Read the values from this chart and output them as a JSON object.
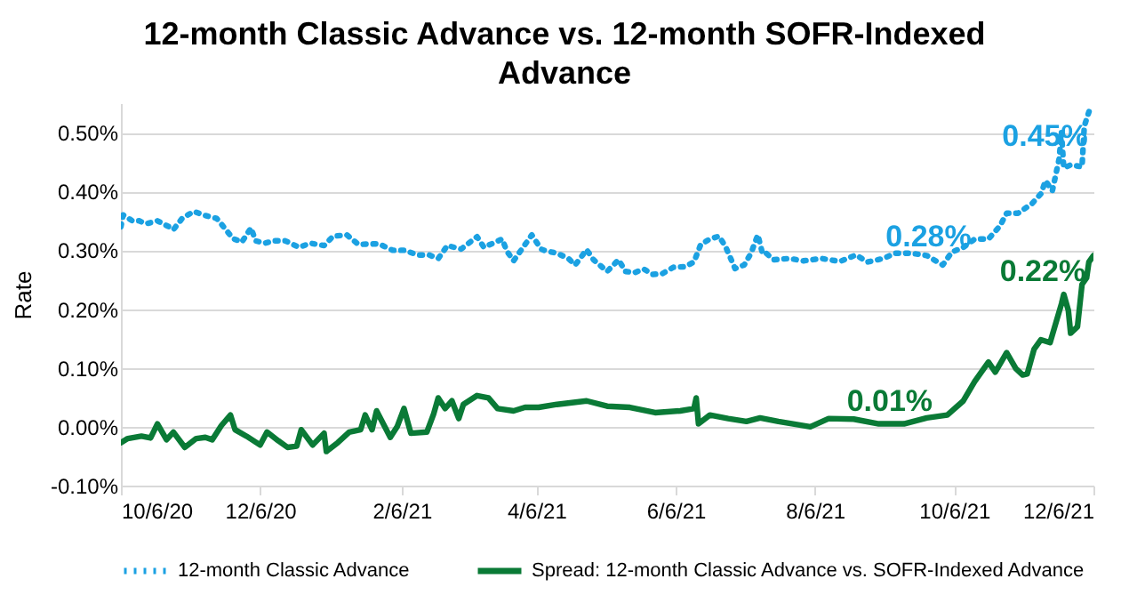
{
  "chart_data": {
    "type": "line",
    "title": "12-month Classic Advance vs. 12-month SOFR-Indexed Advance",
    "ylabel": "Rate",
    "xlim": [
      "2020-10-06",
      "2021-12-06"
    ],
    "xticks": [
      {
        "value": "2020-10-06",
        "label": "10/6/20"
      },
      {
        "value": "2020-12-06",
        "label": "12/6/20"
      },
      {
        "value": "2021-02-06",
        "label": "2/6/21"
      },
      {
        "value": "2021-04-06",
        "label": "4/6/21"
      },
      {
        "value": "2021-06-06",
        "label": "6/6/21"
      },
      {
        "value": "2021-08-06",
        "label": "8/6/21"
      },
      {
        "value": "2021-10-06",
        "label": "10/6/21"
      },
      {
        "value": "2021-12-06",
        "label": "12/6/21"
      }
    ],
    "ylim": [
      -0.1,
      0.55
    ],
    "yticks": [
      {
        "value": -0.1,
        "label": "-0.10%"
      },
      {
        "value": 0,
        "label": "0.00%"
      },
      {
        "value": 0.1,
        "label": "0.10%"
      },
      {
        "value": 0.2,
        "label": "0.20%"
      },
      {
        "value": 0.3,
        "label": "0.30%"
      },
      {
        "value": 0.4,
        "label": "0.40%"
      },
      {
        "value": 0.5,
        "label": "0.50%"
      }
    ],
    "grid": "y",
    "legend": "bottom",
    "annotations": [
      {
        "text": "0.28%",
        "x": "2021-10-01",
        "y": 0.28
      },
      {
        "text": "0.45%",
        "x": "2021-11-21",
        "y": 0.45
      },
      {
        "text": "0.22%",
        "x": "2021-11-20",
        "y": 0.22
      },
      {
        "text": "0.01%",
        "x": "2021-09-14",
        "y": 0.0
      }
    ],
    "series": [
      {
        "name": "12-month Classic Advance",
        "color": "#1ba1e2",
        "line_style": "dotted",
        "x": [
          "2020-10-06",
          "2020-10-07",
          "2020-10-11",
          "2020-10-14",
          "2020-10-17",
          "2020-10-22",
          "2020-10-27",
          "2020-10-29",
          "2020-11-02",
          "2020-11-07",
          "2020-11-11",
          "2020-11-17",
          "2020-11-21",
          "2020-11-24",
          "2020-11-28",
          "2020-12-02",
          "2020-12-04",
          "2020-12-08",
          "2020-12-12",
          "2020-12-17",
          "2020-12-23",
          "2020-12-28",
          "2021-01-03",
          "2021-01-07",
          "2021-01-13",
          "2021-01-18",
          "2021-01-27",
          "2021-02-02",
          "2021-02-07",
          "2021-02-13",
          "2021-02-18",
          "2021-02-22",
          "2021-02-26",
          "2021-03-04",
          "2021-03-11",
          "2021-03-14",
          "2021-03-22",
          "2021-03-24",
          "2021-03-27",
          "2021-04-04",
          "2021-04-08",
          "2021-04-10",
          "2021-04-15",
          "2021-04-20",
          "2021-04-23",
          "2021-04-28",
          "2021-05-01",
          "2021-05-07",
          "2021-05-12",
          "2021-05-15",
          "2021-05-19",
          "2021-05-23",
          "2021-05-27",
          "2021-05-31",
          "2021-06-05",
          "2021-06-10",
          "2021-06-14",
          "2021-06-17",
          "2021-06-21",
          "2021-06-25",
          "2021-06-28",
          "2021-07-02",
          "2021-07-06",
          "2021-07-09",
          "2021-07-12",
          "2021-07-14",
          "2021-07-15",
          "2021-07-19",
          "2021-07-26",
          "2021-08-01",
          "2021-08-09",
          "2021-08-17",
          "2021-08-24",
          "2021-08-29",
          "2021-09-05",
          "2021-09-10",
          "2021-09-17",
          "2021-09-24",
          "2021-10-01",
          "2021-10-05",
          "2021-10-10",
          "2021-10-15",
          "2021-10-21",
          "2021-10-26",
          "2021-10-29",
          "2021-11-03",
          "2021-11-09",
          "2021-11-13",
          "2021-11-15",
          "2021-11-18",
          "2021-11-21",
          "2021-11-22",
          "2021-11-23",
          "2021-11-26",
          "2021-12-01",
          "2021-12-02",
          "2021-12-05"
        ],
        "values": [
          0.34,
          0.36,
          0.35,
          0.35,
          0.345,
          0.35,
          0.34,
          0.335,
          0.355,
          0.366,
          0.36,
          0.354,
          0.335,
          0.32,
          0.314,
          0.338,
          0.316,
          0.312,
          0.316,
          0.316,
          0.305,
          0.312,
          0.308,
          0.324,
          0.326,
          0.31,
          0.311,
          0.3,
          0.3,
          0.292,
          0.292,
          0.286,
          0.308,
          0.302,
          0.323,
          0.305,
          0.319,
          0.299,
          0.282,
          0.326,
          0.302,
          0.299,
          0.295,
          0.286,
          0.275,
          0.301,
          0.284,
          0.264,
          0.284,
          0.264,
          0.262,
          0.268,
          0.259,
          0.26,
          0.271,
          0.272,
          0.28,
          0.31,
          0.319,
          0.324,
          0.305,
          0.269,
          0.275,
          0.295,
          0.326,
          0.295,
          0.297,
          0.284,
          0.286,
          0.282,
          0.286,
          0.281,
          0.292,
          0.28,
          0.286,
          0.295,
          0.295,
          0.291,
          0.275,
          0.297,
          0.305,
          0.319,
          0.319,
          0.341,
          0.363,
          0.363,
          0.379,
          0.396,
          0.418,
          0.401,
          0.456,
          0.5,
          0.44,
          0.445,
          0.442,
          0.511,
          0.547
        ]
      },
      {
        "name": "Spread: 12-month Classic Advance vs. SOFR-Indexed Advance",
        "color": "#0a7a36",
        "line_style": "solid",
        "x": [
          "2020-10-06",
          "2020-10-09",
          "2020-10-15",
          "2020-10-19",
          "2020-10-22",
          "2020-10-26",
          "2020-10-29",
          "2020-11-03",
          "2020-11-08",
          "2020-11-12",
          "2020-11-15",
          "2020-11-19",
          "2020-11-23",
          "2020-11-25",
          "2020-11-30",
          "2020-12-06",
          "2020-12-09",
          "2020-12-14",
          "2020-12-18",
          "2020-12-22",
          "2020-12-24",
          "2020-12-29",
          "2021-01-03",
          "2021-01-04",
          "2021-01-09",
          "2021-01-14",
          "2021-01-19",
          "2021-01-21",
          "2021-01-24",
          "2021-01-26",
          "2021-02-01",
          "2021-02-04",
          "2021-02-07",
          "2021-02-10",
          "2021-02-17",
          "2021-02-20",
          "2021-02-22",
          "2021-02-25",
          "2021-02-28",
          "2021-03-03",
          "2021-03-05",
          "2021-03-11",
          "2021-03-16",
          "2021-03-20",
          "2021-03-27",
          "2021-04-01",
          "2021-04-07",
          "2021-04-15",
          "2021-04-28",
          "2021-05-07",
          "2021-05-17",
          "2021-05-28",
          "2021-06-08",
          "2021-06-14",
          "2021-06-15",
          "2021-06-16",
          "2021-06-21",
          "2021-06-29",
          "2021-07-07",
          "2021-07-13",
          "2021-07-21",
          "2021-08-04",
          "2021-08-12",
          "2021-08-23",
          "2021-09-03",
          "2021-09-14",
          "2021-09-24",
          "2021-10-03",
          "2021-10-10",
          "2021-10-15",
          "2021-10-21",
          "2021-10-24",
          "2021-10-29",
          "2021-11-02",
          "2021-11-05",
          "2021-11-07",
          "2021-11-10",
          "2021-11-13",
          "2021-11-17",
          "2021-11-22",
          "2021-11-23",
          "2021-11-25",
          "2021-11-26",
          "2021-11-29",
          "2021-12-01",
          "2021-12-03",
          "2021-12-04",
          "2021-12-06"
        ],
        "values": [
          -0.027,
          -0.02,
          -0.016,
          -0.019,
          0.005,
          -0.022,
          -0.009,
          -0.035,
          -0.02,
          -0.018,
          -0.022,
          0.002,
          0.02,
          -0.005,
          -0.016,
          -0.031,
          -0.009,
          -0.024,
          -0.035,
          -0.033,
          -0.005,
          -0.031,
          -0.011,
          -0.042,
          -0.027,
          -0.009,
          -0.005,
          0.02,
          -0.005,
          0.027,
          -0.018,
          0.0,
          0.031,
          -0.011,
          -0.009,
          0.022,
          0.049,
          0.031,
          0.044,
          0.014,
          0.038,
          0.053,
          0.049,
          0.031,
          0.027,
          0.033,
          0.033,
          0.038,
          0.044,
          0.035,
          0.033,
          0.024,
          0.027,
          0.031,
          0.049,
          0.005,
          0.02,
          0.014,
          0.009,
          0.015,
          0.009,
          0.0,
          0.014,
          0.013,
          0.005,
          0.005,
          0.015,
          0.02,
          0.044,
          0.077,
          0.11,
          0.093,
          0.126,
          0.099,
          0.088,
          0.09,
          0.132,
          0.148,
          0.143,
          0.209,
          0.225,
          0.198,
          0.159,
          0.17,
          0.242,
          0.253,
          0.28,
          0.291
        ]
      }
    ]
  }
}
